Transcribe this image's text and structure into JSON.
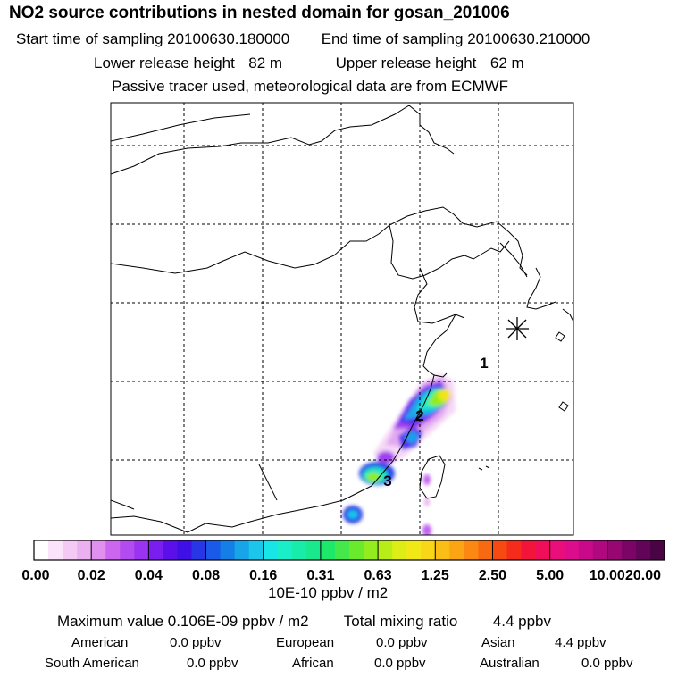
{
  "header": {
    "title": "NO2 source contributions in nested domain for gosan_201006",
    "start_label": "Start time of sampling",
    "start_value": "20100630.180000",
    "end_label": "End time of sampling",
    "end_value": "20100630.210000",
    "lower_label": "Lower release height",
    "lower_value": "82 m",
    "upper_label": "Upper release height",
    "upper_value": "62 m",
    "note": "Passive tracer used, meteorological data are from ECMWF"
  },
  "map": {
    "markers": [
      "1",
      "2",
      "3"
    ],
    "receptor_symbol": "receptor-star"
  },
  "colorbar": {
    "tick_labels": [
      "0.00",
      "0.02",
      "0.04",
      "0.08",
      "0.16",
      "0.31",
      "0.63",
      "1.25",
      "2.50",
      "5.00",
      "10.00",
      "20.00"
    ],
    "units": "10E-10 ppbv / m2",
    "colors": [
      "#ffffff",
      "#fbe4fb",
      "#f4caf4",
      "#eab0f0",
      "#e090ee",
      "#cc66ee",
      "#b34cf0",
      "#9a33f2",
      "#7a1eef",
      "#5b10ea",
      "#3f10e6",
      "#2836e6",
      "#1a5ae8",
      "#157fe8",
      "#18a4e9",
      "#1bc6ea",
      "#18e6e6",
      "#1aeec8",
      "#18ecaa",
      "#1ae88c",
      "#1ee86a",
      "#44e84a",
      "#6aea2c",
      "#92ec1e",
      "#b8ee18",
      "#dcee16",
      "#f2e818",
      "#fad618",
      "#fbbe16",
      "#fba414",
      "#fa8812",
      "#f86a12",
      "#f64a12",
      "#f52c1c",
      "#f3143a",
      "#f00e5a",
      "#ea0e7a",
      "#dd0c8c",
      "#c80a8a",
      "#b0087e",
      "#980672",
      "#7c0466",
      "#620458",
      "#4a0446"
    ]
  },
  "summary": {
    "max_label": "Maximum value",
    "max_value": "0.106E-09 ppbv / m2",
    "total_label": "Total mixing ratio",
    "total_value": "4.4 ppbv",
    "regions": [
      {
        "name": "American",
        "value": "0.0 ppbv"
      },
      {
        "name": "European",
        "value": "0.0 ppbv"
      },
      {
        "name": "Asian",
        "value": "4.4 ppbv"
      },
      {
        "name": "South American",
        "value": "0.0 ppbv"
      },
      {
        "name": "African",
        "value": "0.0 ppbv"
      },
      {
        "name": "Australian",
        "value": "0.0 ppbv"
      }
    ]
  }
}
